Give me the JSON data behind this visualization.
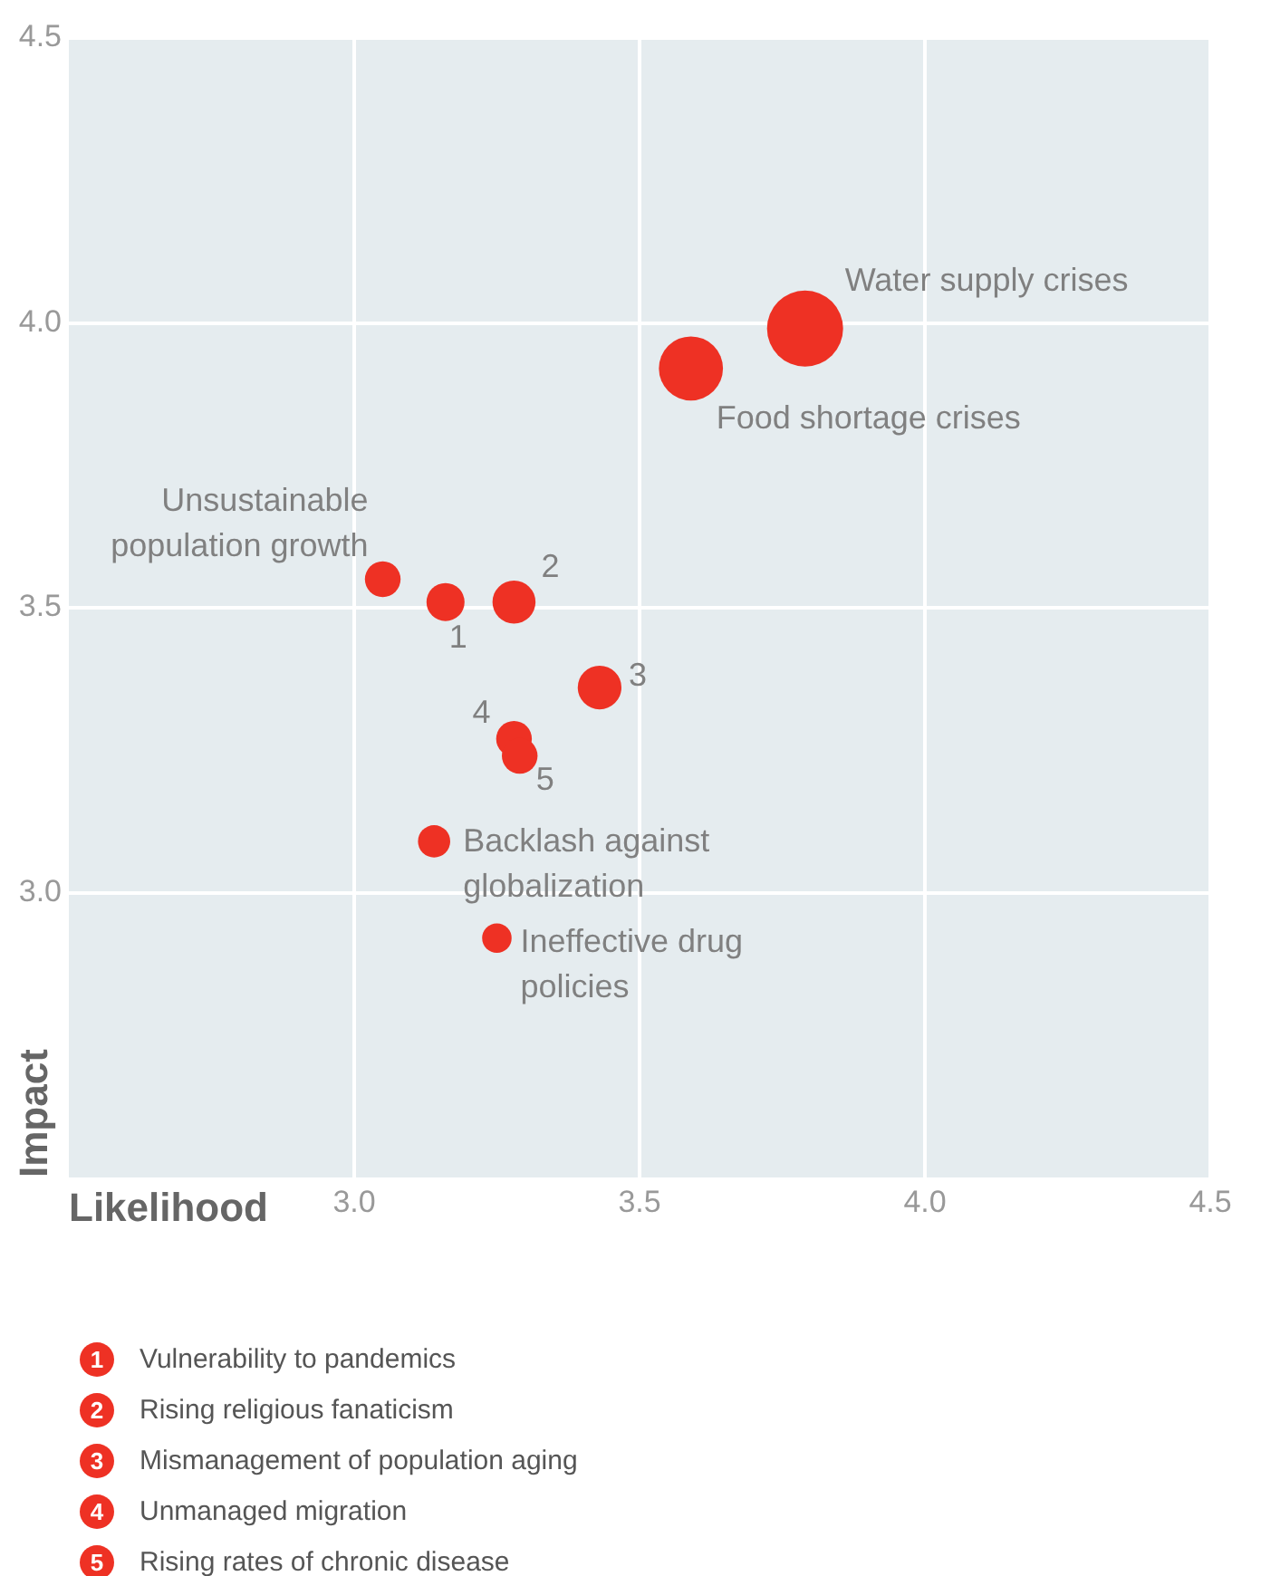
{
  "chart_data": {
    "type": "bubble",
    "xlabel": "Likelihood",
    "ylabel": "Impact",
    "series": [
      {
        "color": "#ee3124",
        "x": [
          3.79,
          3.59,
          3.05,
          3.16,
          3.28,
          3.43,
          3.28,
          3.29,
          3.14,
          3.25
        ],
        "values": [
          3.99,
          3.92,
          3.55,
          3.51,
          3.51,
          3.36,
          3.27,
          3.24,
          3.09,
          2.92
        ],
        "sizes": [
          1,
          0.71,
          0.22,
          0.25,
          0.32,
          0.33,
          0.22,
          0.22,
          0.18,
          0.15
        ]
      }
    ],
    "xlim": [
      2.5,
      4.5
    ],
    "ylim": [
      2.5,
      4.5
    ],
    "xticks": [
      {
        "value": 3,
        "label": "3.0"
      },
      {
        "value": 3.5,
        "label": "3.5"
      },
      {
        "value": 4,
        "label": "4.0"
      },
      {
        "value": 4.5,
        "label": "4.5"
      }
    ],
    "yticks": [
      {
        "value": 3,
        "label": "3.0"
      },
      {
        "value": 3.5,
        "label": "3.5"
      },
      {
        "value": 4,
        "label": "4.0"
      },
      {
        "value": 4.5,
        "label": "4.5"
      }
    ],
    "grid": true,
    "annotations": [
      {
        "text": "Water supply crises",
        "x": 3.79,
        "y": 3.99
      },
      {
        "text": "Food shortage crises",
        "x": 3.59,
        "y": 3.92
      },
      {
        "text": "Unsustainable population growth",
        "x": 3.05,
        "y": 3.55
      },
      {
        "text": "1",
        "x": 3.16,
        "y": 3.51
      },
      {
        "text": "2",
        "x": 3.28,
        "y": 3.51
      },
      {
        "text": "3",
        "x": 3.43,
        "y": 3.36
      },
      {
        "text": "4",
        "x": 3.28,
        "y": 3.27
      },
      {
        "text": "5",
        "x": 3.29,
        "y": 3.24
      },
      {
        "text": "Backlash against globalization",
        "x": 3.14,
        "y": 3.09
      },
      {
        "text": "Ineffective drug policies",
        "x": 3.25,
        "y": 2.92
      },
      "1 Vulnerability to pandemics",
      "2 Rising religious fanaticism",
      "3 Mismanagement of population aging",
      "4 Unmanaged migration",
      "5 Rising rates of chronic disease"
    ]
  }
}
